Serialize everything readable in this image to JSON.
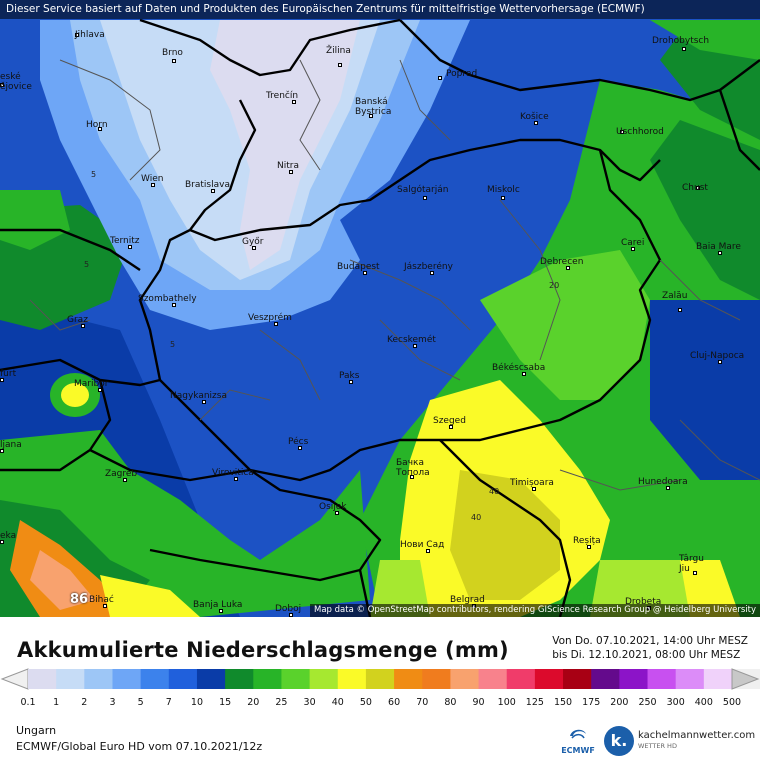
{
  "header": {
    "source_text": "Dieser Service basiert auf Daten und Produkten des Europäischen Zentrums für mittelfristige Wettervorhersage (ECMWF)"
  },
  "attribution": "Map data © OpenStreetMap contributors, rendering GIScience Research Group @ Heidelberg University",
  "cities": [
    {
      "name": "Jihlava"
    },
    {
      "name": "Brno"
    },
    {
      "name": "Žilina"
    },
    {
      "name": "Poprad"
    },
    {
      "name": "Drohobytsch"
    },
    {
      "name": "eské\nějovice"
    },
    {
      "name": "Trenčín"
    },
    {
      "name": "Banská\nBystrica"
    },
    {
      "name": "Košice"
    },
    {
      "name": "Uschhorod"
    },
    {
      "name": "Horn"
    },
    {
      "name": "Nitra"
    },
    {
      "name": "Wien"
    },
    {
      "name": "Bratislava"
    },
    {
      "name": "Salgótarján"
    },
    {
      "name": "Miskolc"
    },
    {
      "name": "Chust"
    },
    {
      "name": "Ternitz"
    },
    {
      "name": "Győr"
    },
    {
      "name": "Budapest"
    },
    {
      "name": "Jászberény"
    },
    {
      "name": "Debrecen"
    },
    {
      "name": "Carei"
    },
    {
      "name": "Baia Mare"
    },
    {
      "name": "Szombathely"
    },
    {
      "name": "Graz"
    },
    {
      "name": "Veszprém"
    },
    {
      "name": "Zalău"
    },
    {
      "name": "Kecskemét"
    },
    {
      "name": "Cluj-Napoca"
    },
    {
      "name": "furt"
    },
    {
      "name": "Maribor"
    },
    {
      "name": "Paks"
    },
    {
      "name": "Békéscsaba"
    },
    {
      "name": "Nagykanizsa"
    },
    {
      "name": "Szeged"
    },
    {
      "name": "ljana"
    },
    {
      "name": "Pécs"
    },
    {
      "name": "Zagreb"
    },
    {
      "name": "Virovitica"
    },
    {
      "name": "Бачка\nТопола"
    },
    {
      "name": "Timișoara"
    },
    {
      "name": "Hunedoara"
    },
    {
      "name": "Osijek"
    },
    {
      "name": "Нови Сад"
    },
    {
      "name": "Reșița"
    },
    {
      "name": "eka"
    },
    {
      "name": "Târgu\nJiu"
    },
    {
      "name": "Bihać"
    },
    {
      "name": "Banja Luka"
    },
    {
      "name": "Doboj"
    },
    {
      "name": "Belgrad"
    },
    {
      "name": "Drobeta"
    }
  ],
  "isolines": [
    {
      "label": "5"
    },
    {
      "label": "5"
    },
    {
      "label": "5"
    },
    {
      "label": "20"
    },
    {
      "label": "40"
    },
    {
      "label": "40"
    },
    {
      "label": "86"
    }
  ],
  "legend": {
    "title": "Akkumulierte Niederschlagsmenge (mm)",
    "period_from": "Von Do. 07.10.2021, 14:00 Uhr MESZ",
    "period_to": "bis Di. 12.10.2021, 08:00 Uhr MESZ",
    "ticks": [
      "0.1",
      "1",
      "2",
      "3",
      "5",
      "7",
      "10",
      "15",
      "20",
      "25",
      "30",
      "40",
      "50",
      "60",
      "70",
      "80",
      "90",
      "100",
      "125",
      "150",
      "175",
      "200",
      "250",
      "300",
      "400",
      "500"
    ],
    "colors": [
      "#dcdcf0",
      "#c6dcf6",
      "#9dc6f6",
      "#6ea6f6",
      "#3c82ec",
      "#2060dc",
      "#0a3ca8",
      "#108a2c",
      "#28b428",
      "#5ad22c",
      "#a6e830",
      "#fafa28",
      "#d2d21e",
      "#f08c14",
      "#f07c1e",
      "#f8a26e",
      "#f8828c",
      "#f03c6a",
      "#dc0a2c",
      "#a80014",
      "#640a8c",
      "#8c14c8",
      "#c850f0",
      "#dc8cf8",
      "#f0d2fa",
      "#f0f0f0",
      "#c8c8c8"
    ]
  },
  "footer": {
    "region": "Ungarn",
    "model_run": "ECMWF/Global Euro HD vom  07.10.2021/12z",
    "ecmwf_logo_text": "ECMWF",
    "provider_name": "kachelmannwetter.com",
    "provider_sub": "WETTER HD"
  }
}
